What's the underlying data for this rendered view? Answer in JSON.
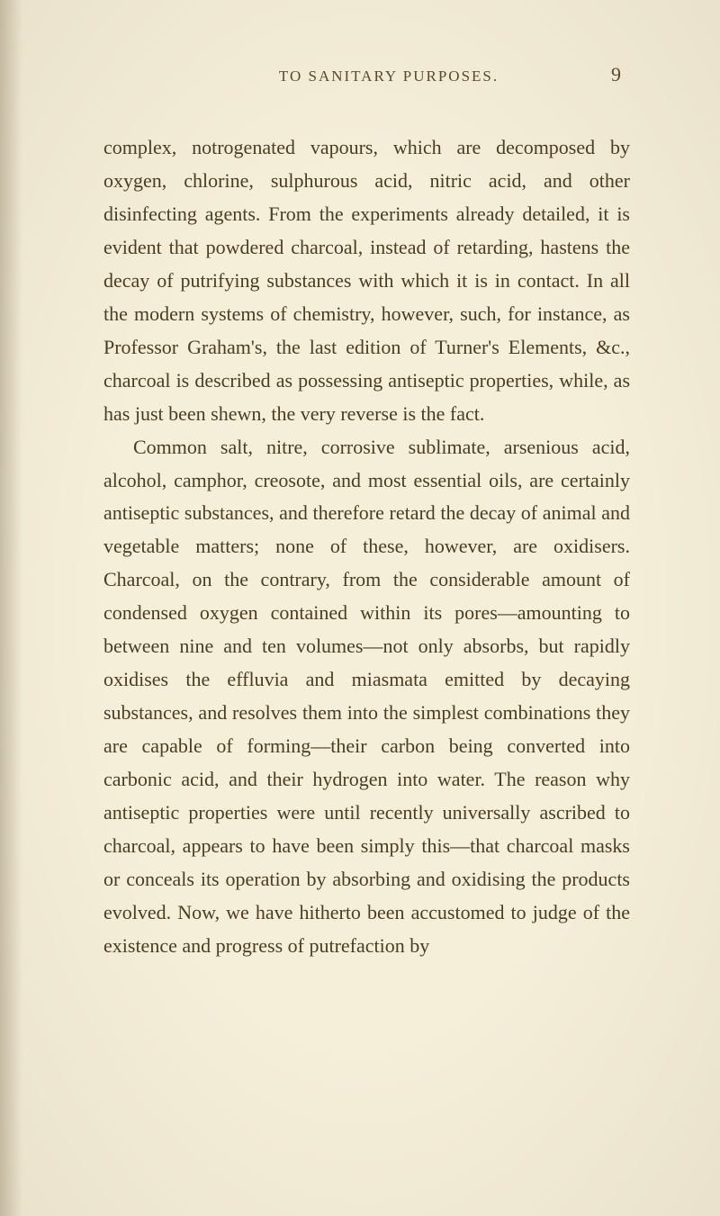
{
  "page": {
    "running_head": "TO SANITARY PURPOSES.",
    "number": "9",
    "colors": {
      "background": "#f5eed9",
      "text": "#4a3d22",
      "header": "#5a4a2a"
    },
    "typography": {
      "body_fontsize": 22,
      "body_lineheight": 1.68,
      "header_fontsize": 17,
      "header_letterspacing": 2,
      "pagenum_fontsize": 22
    },
    "paragraphs": [
      {
        "indent": false,
        "text": "complex, notrogenated vapours, which are decomposed by oxygen, chlorine, sulphurous acid, nitric acid, and other disinfecting agents. From the experiments already detailed, it is evident that powdered charcoal, instead of retarding, hastens the decay of putrifying substances with which it is in contact. In all the modern systems of chemistry, however, such, for instance, as Professor Graham's, the last edition of Turner's Elements, &c., charcoal is described as possessing antiseptic properties, while, as has just been shewn, the very reverse is the fact."
      },
      {
        "indent": true,
        "text": "Common salt, nitre, corrosive sublimate, arsenious acid, alcohol, camphor, creosote, and most essential oils, are certainly antiseptic substances, and therefore retard the decay of animal and vegetable matters; none of these, however, are oxidisers. Charcoal, on the contrary, from the considerable amount of condensed oxygen contained within its pores—amounting to between nine and ten volumes—not only absorbs, but rapidly oxidises the effluvia and miasmata emitted by decaying substances, and resolves them into the simplest combinations they are capable of forming—their carbon being converted into carbonic acid, and their hydrogen into water. The reason why antiseptic properties were until recently universally ascribed to charcoal, appears to have been simply this—that charcoal masks or conceals its operation by absorbing and oxidising the products evolved. Now, we have hitherto been accustomed to judge of the existence and progress of putrefaction by"
      }
    ]
  }
}
